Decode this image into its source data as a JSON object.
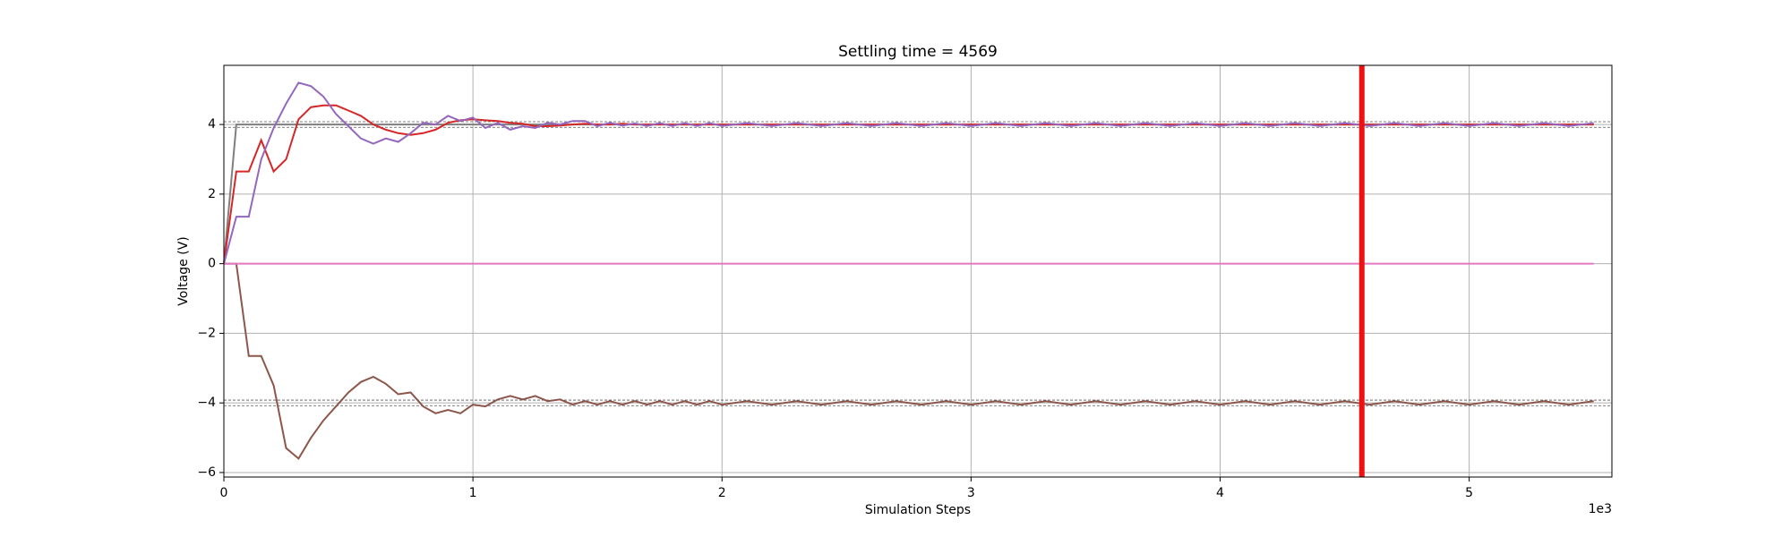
{
  "chart_data": {
    "type": "line",
    "title": "Settling time = 4569",
    "xlabel": "Simulation Steps",
    "ylabel": "Voltage (V)",
    "x_offset_label": "1e3",
    "x": [
      0,
      50,
      100,
      150,
      200,
      250,
      300,
      350,
      400,
      450,
      500,
      550,
      600,
      650,
      700,
      750,
      800,
      850,
      900,
      950,
      1000,
      1050,
      1100,
      1150,
      1200,
      1250,
      1300,
      1350,
      1400,
      1450,
      1500,
      1550,
      1600,
      1650,
      1700,
      1750,
      1800,
      1850,
      1900,
      1950,
      2000,
      2100,
      2200,
      2300,
      2400,
      2500,
      2600,
      2700,
      2800,
      2900,
      3000,
      3100,
      3200,
      3300,
      3400,
      3500,
      3600,
      3700,
      3800,
      3900,
      4000,
      4100,
      4200,
      4300,
      4400,
      4500,
      4600,
      4700,
      4800,
      4900,
      5000,
      5100,
      5200,
      5300,
      5400,
      5500
    ],
    "series": [
      {
        "color": "#7f7f7f",
        "values": [
          0,
          4,
          4,
          4,
          4,
          4,
          4,
          4,
          4,
          4,
          4,
          4,
          4,
          4,
          4,
          4,
          4,
          4,
          4,
          4,
          4,
          4,
          4,
          4,
          4,
          4,
          4,
          4,
          4,
          4,
          4,
          4,
          4,
          4,
          4,
          4,
          4,
          4,
          4,
          4,
          4,
          4,
          4,
          4,
          4,
          4,
          4,
          4,
          4,
          4,
          4,
          4,
          4,
          4,
          4,
          4,
          4,
          4,
          4,
          4,
          4,
          4,
          4,
          4,
          4,
          4,
          4,
          4,
          4,
          4,
          4,
          4,
          4,
          4,
          4,
          4
        ]
      },
      {
        "color": "#d62728",
        "values": [
          0,
          2.65,
          2.65,
          3.55,
          2.65,
          3.0,
          4.15,
          4.5,
          4.55,
          4.55,
          4.4,
          4.25,
          4.0,
          3.85,
          3.75,
          3.7,
          3.75,
          3.85,
          4.05,
          4.12,
          4.15,
          4.12,
          4.1,
          4.05,
          4.02,
          3.95,
          3.95,
          3.97,
          4.0,
          4.02,
          4.0,
          4.0,
          4.02,
          4.0,
          4,
          4,
          4,
          4,
          4,
          4,
          4,
          4,
          4,
          4,
          4,
          4,
          4,
          4,
          4,
          4,
          4,
          4,
          4,
          4,
          4,
          4,
          4,
          4,
          4,
          4,
          4,
          4,
          4,
          4,
          4,
          4,
          4,
          4,
          4,
          4,
          4,
          4,
          4,
          4,
          4,
          4
        ]
      },
      {
        "color": "#9467bd",
        "values": [
          0,
          1.35,
          1.35,
          3.0,
          3.9,
          4.6,
          5.2,
          5.1,
          4.8,
          4.3,
          3.95,
          3.6,
          3.45,
          3.6,
          3.5,
          3.75,
          4.05,
          4.0,
          4.25,
          4.1,
          4.2,
          3.9,
          4.05,
          3.85,
          3.95,
          3.9,
          4.05,
          4.0,
          4.1,
          4.1,
          3.95,
          4.05,
          3.97,
          4.03,
          3.96,
          4.04,
          3.96,
          4.04,
          3.96,
          4.04,
          3.96,
          4.04,
          3.96,
          4.04,
          3.96,
          4.04,
          3.96,
          4.04,
          3.96,
          4.04,
          3.96,
          4.04,
          3.96,
          4.04,
          3.96,
          4.04,
          3.96,
          4.04,
          3.96,
          4.04,
          3.96,
          4.04,
          3.96,
          4.04,
          3.96,
          4.04,
          3.96,
          4.04,
          3.96,
          4.04,
          3.96,
          4.04,
          3.96,
          4.04,
          3.96,
          4.04
        ]
      },
      {
        "color": "#8c564b",
        "values": [
          0,
          0,
          -2.65,
          -2.65,
          -3.5,
          -5.3,
          -5.6,
          -5.0,
          -4.5,
          -4.1,
          -3.7,
          -3.4,
          -3.25,
          -3.45,
          -3.75,
          -3.7,
          -4.1,
          -4.3,
          -4.2,
          -4.3,
          -4.05,
          -4.1,
          -3.9,
          -3.8,
          -3.9,
          -3.8,
          -3.95,
          -3.9,
          -4.05,
          -3.95,
          -4.05,
          -3.95,
          -4.05,
          -3.95,
          -4.05,
          -3.95,
          -4.05,
          -3.95,
          -4.05,
          -3.95,
          -4.05,
          -3.95,
          -4.05,
          -3.95,
          -4.05,
          -3.95,
          -4.05,
          -3.95,
          -4.05,
          -3.95,
          -4.05,
          -3.95,
          -4.05,
          -3.95,
          -4.05,
          -3.95,
          -4.05,
          -3.95,
          -4.05,
          -3.95,
          -4.05,
          -3.95,
          -4.05,
          -3.95,
          -4.05,
          -3.95,
          -4.05,
          -3.95,
          -4.05,
          -3.95,
          -4.05,
          -3.95,
          -4.05,
          -3.95,
          -4.05,
          -3.95
        ]
      },
      {
        "color": "#e377c2",
        "values": [
          0,
          0,
          0,
          0,
          0,
          0,
          0,
          0,
          0,
          0,
          0,
          0,
          0,
          0,
          0,
          0,
          0,
          0,
          0,
          0,
          0,
          0,
          0,
          0,
          0,
          0,
          0,
          0,
          0,
          0,
          0,
          0,
          0,
          0,
          0,
          0,
          0,
          0,
          0,
          0,
          0,
          0,
          0,
          0,
          0,
          0,
          0,
          0,
          0,
          0,
          0,
          0,
          0,
          0,
          0,
          0,
          0,
          0,
          0,
          0,
          0,
          0,
          0,
          0,
          0,
          0,
          0,
          0,
          0,
          0,
          0,
          0,
          0,
          0,
          0,
          0
        ]
      }
    ],
    "hlines": [
      4.08,
      3.92,
      -3.92,
      -4.08
    ],
    "vline": 4569,
    "vline_color": "#ee1111",
    "xlim": [
      0,
      5573
    ],
    "ylim": [
      -6.13,
      5.7
    ],
    "xticks": [
      0,
      {
        "value": 1000,
        "label": "1"
      },
      {
        "value": 2000,
        "label": "2"
      },
      {
        "value": 3000,
        "label": "3"
      },
      {
        "value": 4000,
        "label": "4"
      },
      {
        "value": 5000,
        "label": "5"
      }
    ],
    "yticks": [
      {
        "value": -6,
        "label": "−6"
      },
      {
        "value": -4,
        "label": "−4"
      },
      {
        "value": -2,
        "label": "−2"
      },
      0,
      2,
      4
    ],
    "grid": true
  }
}
